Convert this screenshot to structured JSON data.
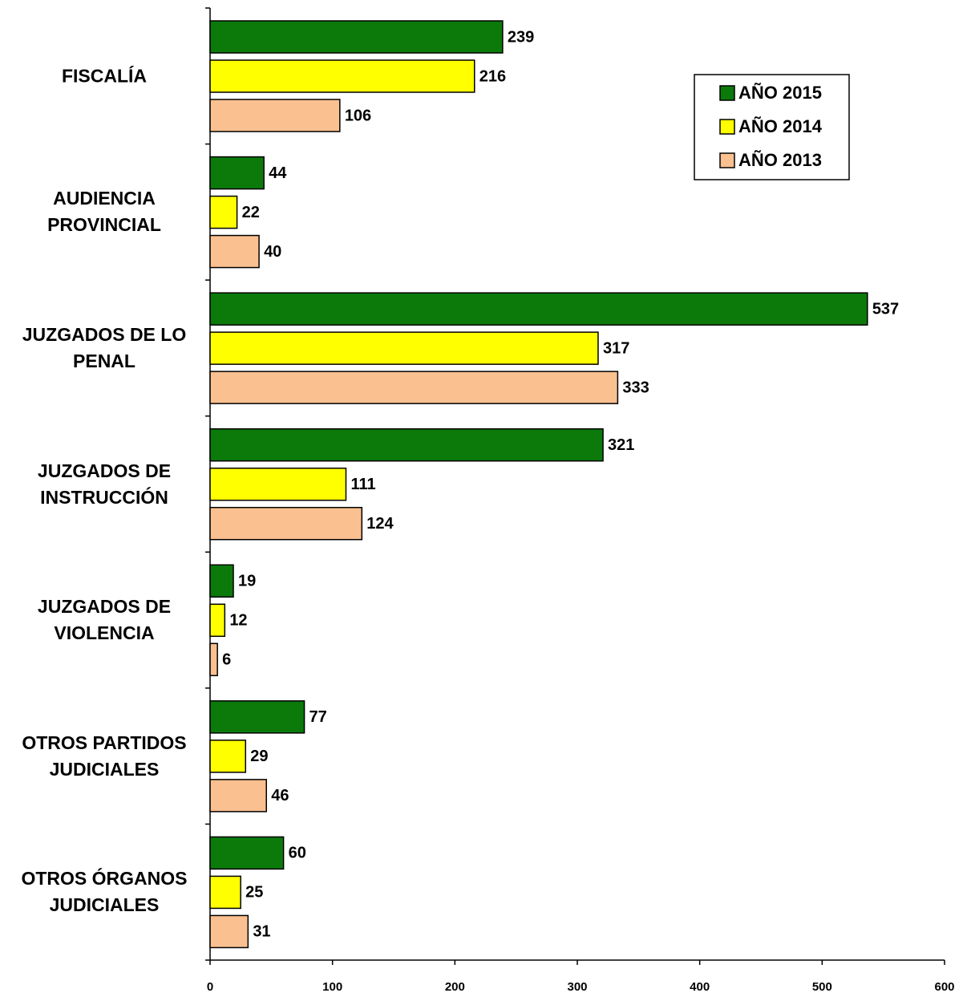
{
  "chart_data": {
    "type": "hbar",
    "categories": [
      "FISCALÍA",
      "AUDIENCIA PROVINCIAL",
      "JUZGADOS DE LO PENAL",
      "JUZGADOS DE INSTRUCCIÓN",
      "JUZGADOS DE VIOLENCIA",
      "OTROS PARTIDOS JUDICIALES",
      "OTROS ÓRGANOS JUDICIALES"
    ],
    "series": [
      {
        "name": "AÑO 2015",
        "color": "#0b7a0b",
        "values": [
          239,
          44,
          537,
          321,
          19,
          77,
          60
        ]
      },
      {
        "name": "AÑO 2014",
        "color": "#ffff00",
        "values": [
          216,
          22,
          317,
          111,
          12,
          29,
          25
        ]
      },
      {
        "name": "AÑO 2013",
        "color": "#fac090",
        "values": [
          106,
          40,
          333,
          124,
          6,
          46,
          31
        ]
      }
    ],
    "xlim": [
      0,
      600
    ],
    "xticks": [
      0,
      100,
      200,
      300,
      400,
      500,
      600
    ],
    "legend": "upper right"
  }
}
